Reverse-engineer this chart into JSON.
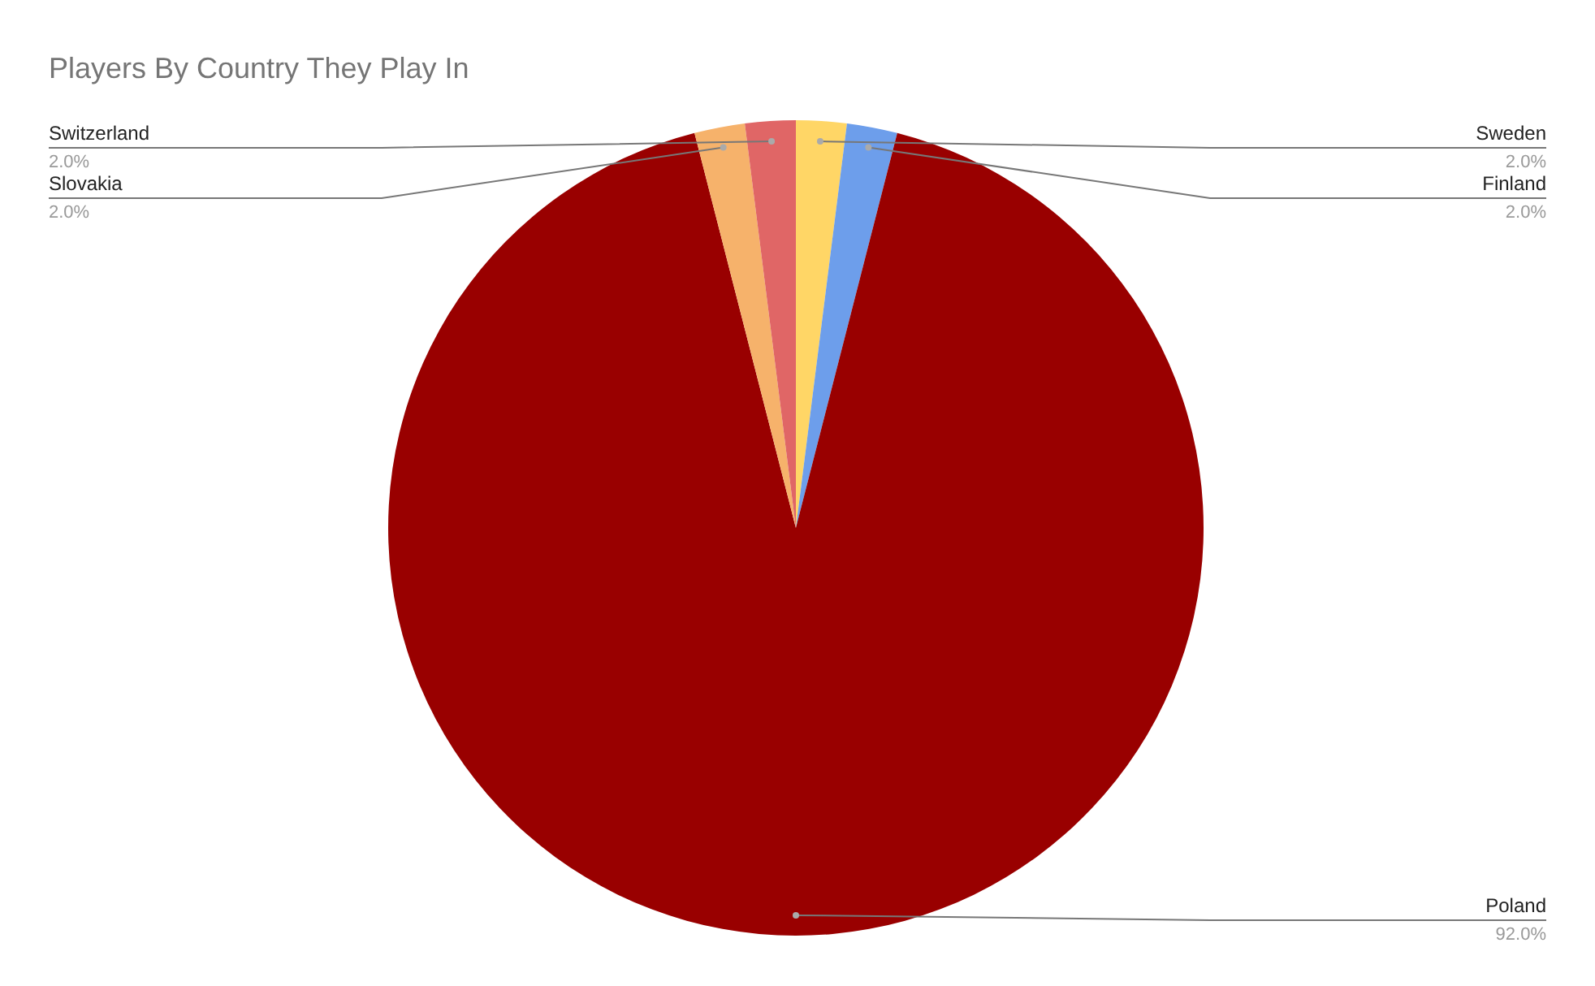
{
  "chart_data": {
    "type": "pie",
    "title": "Players By Country They Play In",
    "categories": [
      "Sweden",
      "Finland",
      "Poland",
      "Slovakia",
      "Switzerland"
    ],
    "values": [
      2,
      2,
      92,
      2,
      2
    ],
    "value_labels": [
      "2.0%",
      "2.0%",
      "92.0%",
      "2.0%",
      "2.0%"
    ],
    "colors": [
      "#ffd666",
      "#6d9eeb",
      "#990000",
      "#f6b26b",
      "#e06666"
    ],
    "legend": false
  }
}
